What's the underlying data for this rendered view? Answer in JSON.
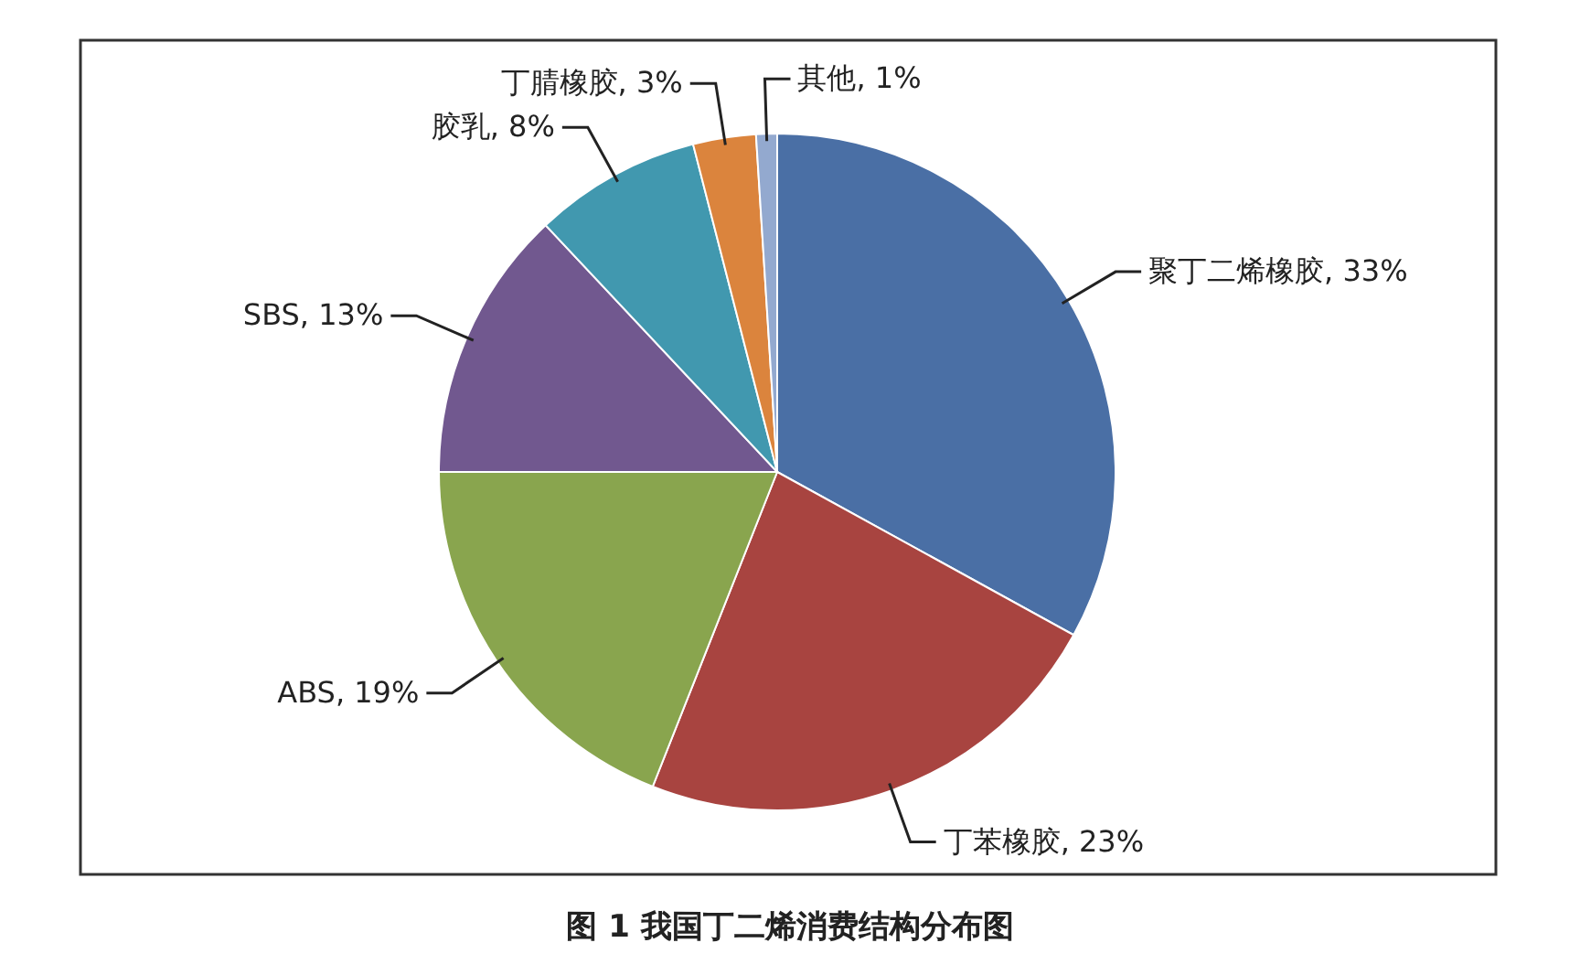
{
  "chart_data": {
    "type": "pie",
    "title": "图 1 我国丁二烯消费结构分布图",
    "categories": [
      "聚丁二烯橡胶",
      "丁苯橡胶",
      "ABS",
      "SBS",
      "胶乳",
      "丁腈橡胶",
      "其他"
    ],
    "values": [
      33,
      23,
      19,
      13,
      8,
      3,
      1
    ],
    "value_labels": [
      "33%",
      "23%",
      "19%",
      "13%",
      "8%",
      "3%",
      "1%"
    ],
    "colors": [
      "#4a6fa5",
      "#a84440",
      "#89a54e",
      "#71588f",
      "#4198af",
      "#db843d",
      "#93a9cf"
    ]
  }
}
